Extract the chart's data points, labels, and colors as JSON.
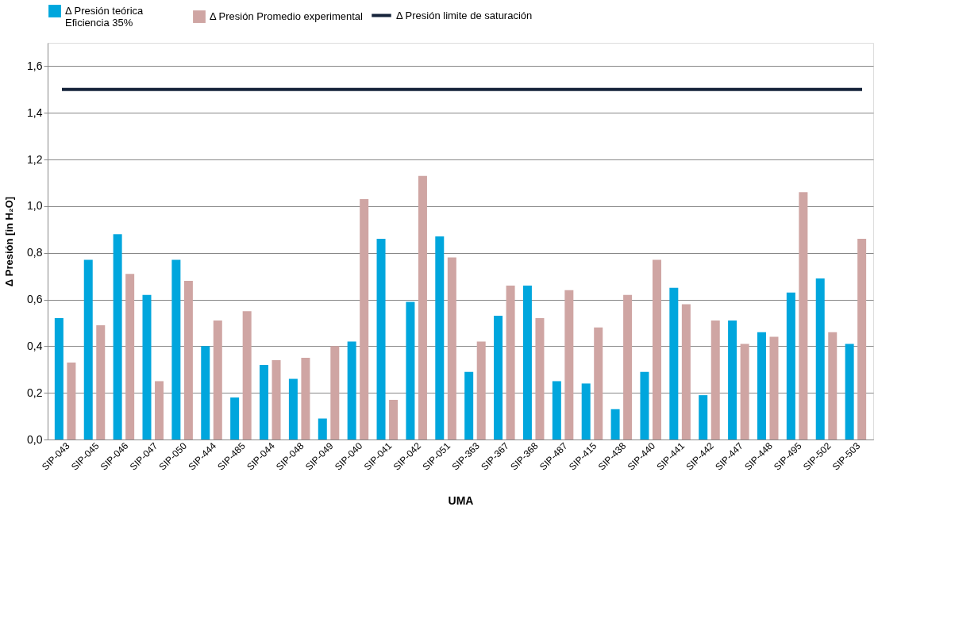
{
  "chart_data": {
    "type": "bar",
    "categories": [
      "SIP-043",
      "SIP-045",
      "SIP-046",
      "SIP-047",
      "SIP-050",
      "SIP-444",
      "SIP-485",
      "SIP-044",
      "SIP-048",
      "SIP-049",
      "SIP-040",
      "SIP-041",
      "SIP-042",
      "SIP-051",
      "SIP-363",
      "SIP-367",
      "SIP-368",
      "SIP-487",
      "SIP-415",
      "SIP-438",
      "SIP-440",
      "SIP-441",
      "SIP-442",
      "SIP-447",
      "SIP-448",
      "SIP-495",
      "SIP-502",
      "SIP-503"
    ],
    "series": [
      {
        "name": "Δ Presión teórica\nEficiencia  35%",
        "color": "#00a6dd",
        "values": [
          0.52,
          0.77,
          0.88,
          0.62,
          0.77,
          0.4,
          0.18,
          0.32,
          0.26,
          0.09,
          0.42,
          0.86,
          0.59,
          0.87,
          0.29,
          0.53,
          0.66,
          0.25,
          0.24,
          0.13,
          0.29,
          0.65,
          0.19,
          0.51,
          0.46,
          0.63,
          0.69,
          0.41
        ]
      },
      {
        "name": "Δ Presión Promedio experimental",
        "color": "#cfa5a3",
        "values": [
          0.33,
          0.49,
          0.71,
          0.25,
          0.68,
          0.51,
          0.55,
          0.34,
          0.35,
          0.4,
          1.03,
          0.17,
          1.13,
          0.78,
          0.42,
          0.66,
          0.52,
          0.64,
          0.48,
          0.62,
          0.77,
          0.58,
          0.51,
          0.41,
          0.44,
          1.06,
          0.46,
          0.86
        ]
      }
    ],
    "ref_lines": [
      {
        "axis": "y",
        "value": 1.5,
        "label": "Δ Presión limite de saturación",
        "color": "#15233a"
      }
    ],
    "xlabel": "UMA",
    "ylabel": "Δ Presión [in H₂O]",
    "ylim": [
      0,
      1.7
    ],
    "yticks": [
      {
        "value": 0,
        "label": "0,0"
      },
      {
        "value": 0.2,
        "label": "0,2"
      },
      {
        "value": 0.4,
        "label": "0,4"
      },
      {
        "value": 0.6,
        "label": "0,6"
      },
      {
        "value": 0.8,
        "label": "0,8"
      },
      {
        "value": 1.0,
        "label": "1,0"
      },
      {
        "value": 1.2,
        "label": "1,2"
      },
      {
        "value": 1.4,
        "label": "1,4"
      },
      {
        "value": 1.6,
        "label": "1,6"
      }
    ],
    "grid": "y",
    "legend": "top"
  }
}
